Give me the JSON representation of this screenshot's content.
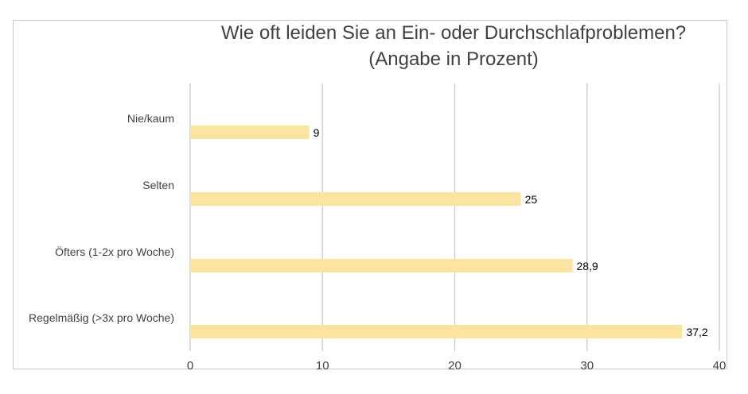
{
  "chart_data": {
    "type": "bar",
    "orientation": "horizontal",
    "title": "Wie oft leiden Sie an Ein- oder Durchschlafproblemen?",
    "subtitle": "(Angabe in Prozent)",
    "categories": [
      "Nie/kaum",
      "Selten",
      "Öfters (1-2x pro Woche)",
      "Regelmäßig (>3x pro Woche)"
    ],
    "values": [
      9,
      25,
      28.9,
      37.2
    ],
    "data_labels": [
      "9",
      "25",
      "28,9",
      "37,2"
    ],
    "xlim": [
      0,
      40
    ],
    "xticks": [
      0,
      10,
      20,
      30,
      40
    ],
    "grid": true,
    "bar_color": "#fae4a0",
    "grid_color": "#c8c8c8"
  }
}
